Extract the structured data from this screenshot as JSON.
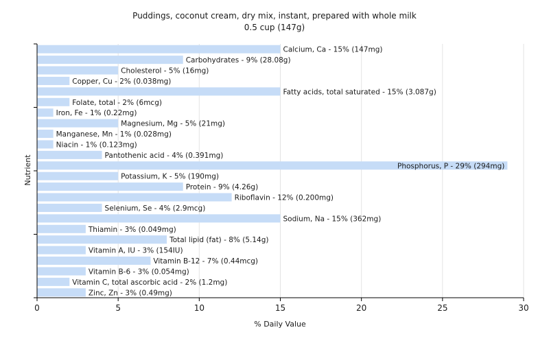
{
  "chart_data": {
    "type": "bar",
    "orientation": "horizontal",
    "title": "Puddings, coconut cream, dry mix, instant, prepared with whole milk",
    "subtitle": "0.5 cup (147g)",
    "xlabel": "% Daily Value",
    "ylabel": "Nutrient",
    "xlim": [
      0,
      30
    ],
    "xticks": [
      0,
      5,
      10,
      15,
      20,
      25,
      30
    ],
    "grid": true,
    "bar_color": "#c6dcf7",
    "categories": [
      "Calcium, Ca",
      "Carbohydrates",
      "Cholesterol",
      "Copper, Cu",
      "Fatty acids, total saturated",
      "Folate, total",
      "Iron, Fe",
      "Magnesium, Mg",
      "Manganese, Mn",
      "Niacin",
      "Pantothenic acid",
      "Phosphorus, P",
      "Potassium, K",
      "Protein",
      "Riboflavin",
      "Selenium, Se",
      "Sodium, Na",
      "Thiamin",
      "Total lipid (fat)",
      "Vitamin A, IU",
      "Vitamin B-12",
      "Vitamin B-6",
      "Vitamin C, total ascorbic acid",
      "Zinc, Zn"
    ],
    "values": [
      15,
      9,
      5,
      2,
      15,
      2,
      1,
      5,
      1,
      1,
      4,
      29,
      5,
      9,
      12,
      4,
      15,
      3,
      8,
      3,
      7,
      3,
      2,
      3
    ],
    "labels": [
      "Calcium, Ca - 15% (147mg)",
      "Carbohydrates - 9% (28.08g)",
      "Cholesterol - 5% (16mg)",
      "Copper, Cu - 2% (0.038mg)",
      "Fatty acids, total saturated - 15% (3.087g)",
      "Folate, total - 2% (6mcg)",
      "Iron, Fe - 1% (0.22mg)",
      "Magnesium, Mg - 5% (21mg)",
      "Manganese, Mn - 1% (0.028mg)",
      "Niacin - 1% (0.123mg)",
      "Pantothenic acid - 4% (0.391mg)",
      "Phosphorus, P - 29% (294mg)",
      "Potassium, K - 5% (190mg)",
      "Protein - 9% (4.26g)",
      "Riboflavin - 12% (0.200mg)",
      "Selenium, Se - 4% (2.9mcg)",
      "Sodium, Na - 15% (362mg)",
      "Thiamin - 3% (0.049mg)",
      "Total lipid (fat) - 8% (5.14g)",
      "Vitamin A, IU - 3% (154IU)",
      "Vitamin B-12 - 7% (0.44mcg)",
      "Vitamin B-6 - 3% (0.054mg)",
      "Vitamin C, total ascorbic acid - 2% (1.2mg)",
      "Zinc, Zn - 3% (0.49mg)"
    ]
  }
}
